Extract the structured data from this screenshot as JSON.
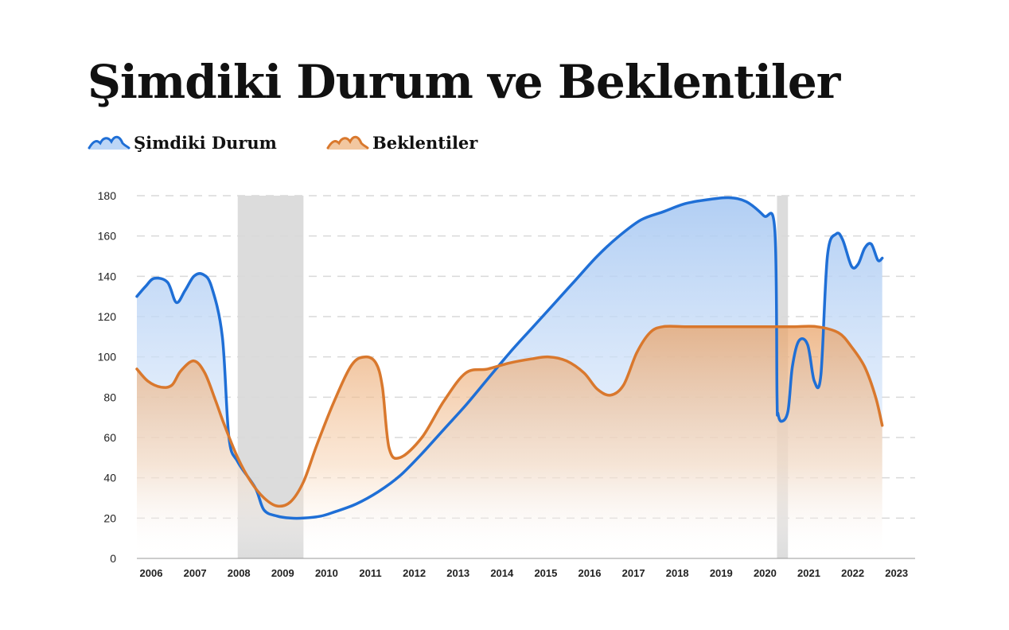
{
  "chart_data": {
    "type": "area",
    "title": "Şimdiki Durum ve Beklentiler",
    "xlabel": "",
    "ylabel": "",
    "ylim": [
      0,
      180
    ],
    "y_ticks": [
      "0",
      "20",
      "40",
      "60",
      "80",
      "100",
      "120",
      "140",
      "160",
      "180"
    ],
    "xlim": [
      2006,
      2023.8
    ],
    "x_ticks": [
      "2006",
      "2007",
      "2008",
      "2009",
      "2010",
      "2011",
      "2012",
      "2013",
      "2014",
      "2015",
      "2016",
      "2017",
      "2018",
      "2019",
      "2020",
      "2021",
      "2022",
      "2023"
    ],
    "grid": "horizontal dashed",
    "legend_position": "top-left",
    "shaded_periods": [
      [
        2008.3,
        2009.8
      ],
      [
        2020.6,
        2020.85
      ]
    ],
    "series": [
      {
        "name": "Şimdiki Durum",
        "color": "#1f6fd6",
        "x": [
          2006,
          2006.2,
          2006.4,
          2006.7,
          2006.9,
          2007.1,
          2007.3,
          2007.5,
          2007.7,
          2007.95,
          2008.1,
          2008.3,
          2008.7,
          2008.9,
          2009.2,
          2009.5,
          2009.8,
          2010.2,
          2010.5,
          2011.0,
          2011.5,
          2012.0,
          2012.5,
          2013.0,
          2013.5,
          2014.0,
          2014.5,
          2015.0,
          2015.5,
          2016.0,
          2016.5,
          2017.0,
          2017.5,
          2018.0,
          2018.5,
          2019.0,
          2019.5,
          2019.9,
          2020.3,
          2020.55,
          2020.6,
          2020.62,
          2020.7,
          2020.85,
          2020.95,
          2021.1,
          2021.3,
          2021.45,
          2021.6,
          2021.75,
          2021.95,
          2022.1,
          2022.3,
          2022.45,
          2022.6,
          2022.75,
          2022.9,
          2023.0
        ],
        "y": [
          130,
          135,
          139,
          137,
          127,
          133,
          140,
          141,
          135,
          110,
          60,
          48,
          35,
          24,
          21,
          20,
          20,
          21,
          23,
          27,
          33,
          41,
          52,
          64,
          76,
          89,
          102,
          114,
          126,
          138,
          150,
          160,
          168,
          172,
          176,
          178,
          179,
          177,
          170,
          163,
          80,
          72,
          68,
          73,
          95,
          108,
          106,
          88,
          91,
          150,
          161,
          158,
          145,
          146,
          154,
          156,
          148,
          149
        ]
      },
      {
        "name": "Beklentiler",
        "color": "#d9782d",
        "x": [
          2006,
          2006.25,
          2006.55,
          2006.8,
          2007.0,
          2007.3,
          2007.55,
          2007.8,
          2008.0,
          2008.3,
          2008.6,
          2008.9,
          2009.2,
          2009.5,
          2009.8,
          2010.1,
          2010.5,
          2010.9,
          2011.2,
          2011.45,
          2011.6,
          2011.75,
          2012.0,
          2012.5,
          2013.0,
          2013.5,
          2014.0,
          2014.5,
          2015.0,
          2015.4,
          2015.8,
          2016.2,
          2016.5,
          2016.8,
          2017.1,
          2017.4,
          2017.7,
          2018.0,
          2018.5,
          2019.0,
          2019.5,
          2020.0,
          2020.5,
          2021.0,
          2021.5,
          2022.0,
          2022.3,
          2022.6,
          2022.85,
          2023.0
        ],
        "y": [
          94,
          88,
          85,
          86,
          93,
          98,
          92,
          78,
          66,
          50,
          38,
          30,
          26,
          28,
          38,
          56,
          78,
          96,
          100,
          97,
          85,
          55,
          50,
          60,
          78,
          92,
          94,
          97,
          99,
          100,
          98,
          92,
          84,
          81,
          86,
          102,
          112,
          115,
          115,
          115,
          115,
          115,
          115,
          115,
          115,
          112,
          105,
          95,
          80,
          66
        ]
      }
    ]
  }
}
